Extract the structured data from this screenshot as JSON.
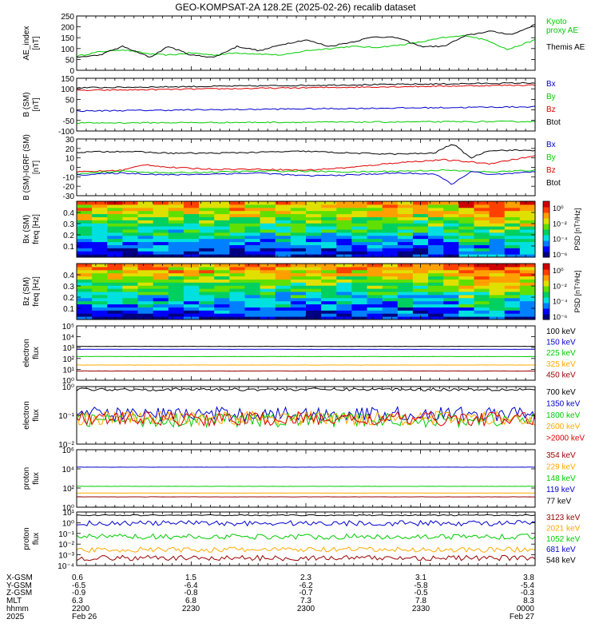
{
  "title": "GEO-KOMPSAT-2A 128.2E (2025-02-26) recalib dataset",
  "colors": {
    "black": "#000000",
    "blue": "#0000cc",
    "red": "#dd0000",
    "green": "#00cc00",
    "orange": "#ffaa00",
    "darkred": "#990000",
    "lime": "#22dd22"
  },
  "chart_data": [
    {
      "id": "ae",
      "type": "line",
      "ylabel": "AE_index\n[nT]",
      "ylim": [
        0,
        250
      ],
      "yticks": [
        "250",
        "200",
        "150",
        "100",
        "50",
        "0"
      ],
      "ytick_values": [
        250,
        200,
        150,
        100,
        50,
        0
      ],
      "series": [
        {
          "name": "Kyoto proxy AE",
          "color": "#00cc00",
          "x": [
            0,
            0.05,
            0.1,
            0.16,
            0.2,
            0.25,
            0.3,
            0.35,
            0.4,
            0.45,
            0.5,
            0.55,
            0.6,
            0.65,
            0.7,
            0.75,
            0.8,
            0.85,
            0.9,
            0.94,
            1.0
          ],
          "values": [
            65,
            85,
            95,
            75,
            70,
            80,
            70,
            80,
            75,
            70,
            90,
            100,
            110,
            105,
            115,
            130,
            150,
            160,
            135,
            95,
            140
          ]
        },
        {
          "name": "Themis AE",
          "color": "#000000",
          "x": [
            0,
            0.05,
            0.1,
            0.16,
            0.2,
            0.25,
            0.3,
            0.35,
            0.4,
            0.45,
            0.5,
            0.55,
            0.6,
            0.65,
            0.7,
            0.75,
            0.8,
            0.85,
            0.9,
            0.95,
            1.0
          ],
          "values": [
            60,
            70,
            110,
            60,
            110,
            70,
            60,
            110,
            90,
            120,
            140,
            110,
            130,
            155,
            150,
            110,
            110,
            160,
            180,
            165,
            210
          ]
        }
      ],
      "legend": [
        {
          "label": "Kyoto\nproxy AE",
          "color": "#00cc00"
        },
        {
          "label": "Themis AE",
          "color": "#000000"
        }
      ]
    },
    {
      "id": "bsm",
      "type": "line",
      "ylabel": "B (SM)\n[nT]",
      "ylim": [
        -100,
        150
      ],
      "yticks": [
        "150",
        "100",
        "50",
        "0",
        "-50",
        "-100"
      ],
      "ytick_values": [
        150,
        100,
        50,
        0,
        -50,
        -100
      ],
      "series": [
        {
          "name": "Btot",
          "color": "#000000",
          "x": [
            0,
            1
          ],
          "values": [
            105,
            128
          ]
        },
        {
          "name": "Bz",
          "color": "#dd0000",
          "x": [
            0,
            1
          ],
          "values": [
            92,
            118
          ]
        },
        {
          "name": "Bx",
          "color": "#0000cc",
          "x": [
            0,
            1
          ],
          "values": [
            -5,
            15
          ]
        },
        {
          "name": "By",
          "color": "#00cc00",
          "x": [
            0,
            1
          ],
          "values": [
            -62,
            -55
          ]
        }
      ],
      "legend": [
        {
          "label": "Bx",
          "color": "#0000cc"
        },
        {
          "label": "By",
          "color": "#00cc00"
        },
        {
          "label": "Bz",
          "color": "#dd0000"
        },
        {
          "label": "Btot",
          "color": "#000000"
        }
      ]
    },
    {
      "id": "bigrf",
      "type": "line",
      "ylabel": "B (SM)-IGRF (SM)\n[nT]",
      "ylim": [
        -30,
        30
      ],
      "yticks": [
        "30",
        "20",
        "10",
        "0",
        "-10",
        "-20",
        "-30"
      ],
      "ytick_values": [
        30,
        20,
        10,
        0,
        -10,
        -20,
        -30
      ],
      "series": [
        {
          "name": "Btot",
          "color": "#000000",
          "x": [
            0,
            0.1,
            0.2,
            0.3,
            0.4,
            0.5,
            0.6,
            0.7,
            0.78,
            0.82,
            0.86,
            0.9,
            1.0
          ],
          "values": [
            16,
            17,
            15,
            15,
            16,
            17,
            15,
            14,
            15,
            25,
            10,
            18,
            18
          ]
        },
        {
          "name": "Bz",
          "color": "#dd0000",
          "x": [
            0,
            0.1,
            0.15,
            0.2,
            0.3,
            0.4,
            0.5,
            0.6,
            0.7,
            0.8,
            0.9,
            1.0
          ],
          "values": [
            -5,
            -3,
            3,
            0,
            -2,
            -2,
            -3,
            0,
            5,
            8,
            4,
            12
          ]
        },
        {
          "name": "By",
          "color": "#00cc00",
          "x": [
            0,
            0.1,
            0.2,
            0.3,
            0.4,
            0.5,
            0.6,
            0.7,
            0.8,
            0.9,
            1.0
          ],
          "values": [
            -7,
            -4,
            -6,
            -5,
            -4,
            -4,
            -5,
            -4,
            -3,
            -5,
            -3
          ]
        },
        {
          "name": "Bx",
          "color": "#0000cc",
          "x": [
            0,
            0.1,
            0.2,
            0.3,
            0.4,
            0.5,
            0.6,
            0.7,
            0.78,
            0.82,
            0.86,
            0.9,
            1.0
          ],
          "values": [
            -8,
            -6,
            -8,
            -7,
            -6,
            -9,
            -8,
            -6,
            -7,
            -18,
            -4,
            -8,
            -5
          ]
        }
      ],
      "legend": [
        {
          "label": "Bx",
          "color": "#0000cc"
        },
        {
          "label": "By",
          "color": "#00cc00"
        },
        {
          "label": "Bz",
          "color": "#dd0000"
        },
        {
          "label": "Btot",
          "color": "#000000"
        }
      ]
    },
    {
      "id": "bx_spec",
      "type": "heatmap",
      "ylabel": "Bx (SM)\nfreq [Hz]",
      "ylim": [
        0,
        0.5
      ],
      "yticks": [
        "0.4",
        "0.3",
        "0.2",
        "0.1"
      ],
      "ytick_values": [
        0.4,
        0.3,
        0.2,
        0.1
      ],
      "colorbar": {
        "label": "PSD [nT²/Hz]",
        "ticks": [
          "10⁰",
          "10⁻²",
          "10⁻⁴",
          "10⁻⁶"
        ]
      }
    },
    {
      "id": "bz_spec",
      "type": "heatmap",
      "ylabel": "Bz (SM)\nfreq [Hz]",
      "ylim": [
        0,
        0.5
      ],
      "yticks": [
        "0.4",
        "0.3",
        "0.2",
        "0.1"
      ],
      "ytick_values": [
        0.4,
        0.3,
        0.2,
        0.1
      ],
      "colorbar": {
        "label": "PSD [nT²/Hz]",
        "ticks": [
          "10⁰",
          "10⁻²",
          "10⁻⁴",
          "10⁻⁶"
        ]
      }
    },
    {
      "id": "e_low",
      "type": "line",
      "scale": "log",
      "ylabel": "electron\nflux",
      "ylim": [
        1,
        100000
      ],
      "yticks": [
        "10⁵",
        "10⁴",
        "10³",
        "10²",
        "10¹",
        "10⁰"
      ],
      "ytick_values": [
        100000,
        10000,
        1000,
        100,
        10,
        1
      ],
      "series": [
        {
          "name": "100 keV",
          "color": "#000000",
          "x": [
            0,
            1
          ],
          "values": [
            1300,
            1300
          ]
        },
        {
          "name": "150 keV",
          "color": "#0000cc",
          "x": [
            0,
            1
          ],
          "values": [
            700,
            700
          ]
        },
        {
          "name": "225 keV",
          "color": "#00cc00",
          "x": [
            0,
            1
          ],
          "values": [
            150,
            150
          ]
        },
        {
          "name": "325 keV",
          "color": "#ffaa00",
          "x": [
            0,
            1
          ],
          "values": [
            25,
            25
          ]
        },
        {
          "name": "450 keV",
          "color": "#990000",
          "x": [
            0,
            1
          ],
          "values": [
            7,
            7
          ]
        }
      ],
      "legend": [
        {
          "label": "100 keV",
          "color": "#000000"
        },
        {
          "label": "150 keV",
          "color": "#0000cc"
        },
        {
          "label": "225 keV",
          "color": "#00cc00"
        },
        {
          "label": "325 keV",
          "color": "#ffaa00"
        },
        {
          "label": "450 keV",
          "color": "#990000"
        }
      ]
    },
    {
      "id": "e_high",
      "type": "line",
      "scale": "log",
      "ylabel": "electron\nflux",
      "ylim": [
        0.01,
        1
      ],
      "yticks": [
        "10⁰",
        "10⁻¹",
        "10⁻²"
      ],
      "ytick_values": [
        1,
        0.1,
        0.01
      ],
      "series": [
        {
          "name": "700 keV",
          "color": "#000000",
          "x": [
            0,
            1
          ],
          "values": [
            0.8,
            0.8
          ]
        },
        {
          "name": "1350 keV",
          "color": "#0000cc",
          "x": [
            0,
            1
          ],
          "values": [
            0.11,
            0.11
          ]
        },
        {
          "name": "1800 keV",
          "color": "#00cc00",
          "x": [
            0,
            1
          ],
          "values": [
            0.07,
            0.07
          ]
        },
        {
          "name": "2600 keV",
          "color": "#ffaa00",
          "x": [
            0,
            1
          ],
          "values": [
            0.08,
            0.08
          ]
        },
        {
          "name": ">2000 keV",
          "color": "#dd0000",
          "x": [
            0,
            1
          ],
          "values": [
            0.075,
            0.075
          ]
        }
      ],
      "legend": [
        {
          "label": "700 keV",
          "color": "#000000"
        },
        {
          "label": "1350 keV",
          "color": "#0000cc"
        },
        {
          "label": "1800 keV",
          "color": "#00cc00"
        },
        {
          "label": "2600 keV",
          "color": "#ffaa00"
        },
        {
          "label": ">2000 keV",
          "color": "#dd0000"
        }
      ]
    },
    {
      "id": "p_low",
      "type": "line",
      "scale": "log",
      "ylabel": "proton\nflux",
      "ylim": [
        1,
        1000000
      ],
      "yticks": [
        "10⁶",
        "10⁴",
        "10²",
        "10⁰"
      ],
      "ytick_values": [
        1000000,
        10000,
        100,
        1
      ],
      "series": [
        {
          "name": "119 keV",
          "color": "#0000cc",
          "x": [
            0,
            1
          ],
          "values": [
            15000,
            15000
          ]
        },
        {
          "name": "148 keV",
          "color": "#00cc00",
          "x": [
            0,
            1
          ],
          "values": [
            150,
            150
          ]
        },
        {
          "name": "229 keV",
          "color": "#ffaa00",
          "x": [
            0,
            1
          ],
          "values": [
            30,
            30
          ]
        },
        {
          "name": "354 keV",
          "color": "#990000",
          "x": [
            0,
            1
          ],
          "values": [
            12,
            12
          ]
        },
        {
          "name": "77 keV",
          "color": "#000000",
          "x": [
            0,
            1
          ],
          "values": [
            1,
            1
          ]
        }
      ],
      "legend": [
        {
          "label": "354 keV",
          "color": "#990000"
        },
        {
          "label": "229 keV",
          "color": "#ffaa00"
        },
        {
          "label": "148 keV",
          "color": "#00cc00"
        },
        {
          "label": "119 keV",
          "color": "#0000cc"
        },
        {
          "label": "77 keV",
          "color": "#000000"
        }
      ]
    },
    {
      "id": "p_high",
      "type": "line",
      "scale": "log",
      "ylabel": "proton\nflux",
      "ylim": [
        0.0001,
        10
      ],
      "yticks": [
        "10¹",
        "10⁰",
        "10⁻¹",
        "10⁻²",
        "10⁻³",
        "10⁻⁴"
      ],
      "ytick_values": [
        10,
        1,
        0.1,
        0.01,
        0.001,
        0.0001
      ],
      "series": [
        {
          "name": "548 keV",
          "color": "#000000",
          "x": [
            0,
            1
          ],
          "values": [
            5,
            5
          ]
        },
        {
          "name": "681 keV",
          "color": "#0000cc",
          "x": [
            0,
            1
          ],
          "values": [
            0.9,
            0.9
          ]
        },
        {
          "name": "1052 keV",
          "color": "#00cc00",
          "x": [
            0,
            1
          ],
          "values": [
            0.05,
            0.05
          ]
        },
        {
          "name": "2021 keV",
          "color": "#ffaa00",
          "x": [
            0,
            1
          ],
          "values": [
            0.003,
            0.003
          ]
        },
        {
          "name": "3123 keV",
          "color": "#990000",
          "x": [
            0,
            1
          ],
          "values": [
            0.0005,
            0.0005
          ]
        }
      ],
      "legend": [
        {
          "label": "3123 keV",
          "color": "#990000"
        },
        {
          "label": "2021 keV",
          "color": "#ffaa00"
        },
        {
          "label": "1052 keV",
          "color": "#00cc00"
        },
        {
          "label": "681 keV",
          "color": "#0000cc"
        },
        {
          "label": "548 keV",
          "color": "#000000"
        }
      ]
    }
  ],
  "ephemeris": {
    "row_labels": [
      "X-GSM",
      "Y-GSM",
      "Z-GSM",
      "MLT",
      "hhmm",
      "2025"
    ],
    "columns": [
      [
        "0.6",
        "-6.5",
        "-0.9",
        "6.3",
        "2200",
        "Feb 26"
      ],
      [
        "1.5",
        "-6.4",
        "-0.8",
        "6.8",
        "2230",
        ""
      ],
      [
        "2.3",
        "-6.2",
        "-0.7",
        "7.3",
        "2300",
        ""
      ],
      [
        "3.1",
        "-5.8",
        "-0.5",
        "7.8",
        "2330",
        ""
      ],
      [
        "3.8",
        "-5.4",
        "-0.3",
        "8.3",
        "0000",
        "Feb 27"
      ]
    ]
  }
}
